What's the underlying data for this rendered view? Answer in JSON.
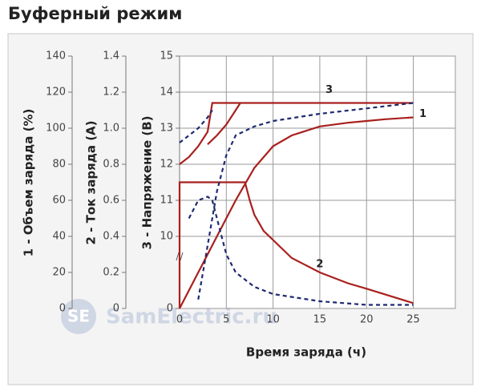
{
  "chart_data": {
    "type": "line",
    "title": "Буферный режим",
    "xlabel": "Время заряда (ч)",
    "ylabel": "1 - Объем заряда (%)",
    "y2label": "2 - Ток заряда (А)",
    "y3label": "3 - Напряжение (В)",
    "watermark_logo": "SE",
    "watermark": "SamElectric.ru",
    "xlim": [
      0,
      29.5
    ],
    "xticks": [
      0,
      5,
      10,
      15,
      20,
      25
    ],
    "ylim": [
      0,
      140
    ],
    "yticks": [
      0,
      20,
      40,
      60,
      80,
      100,
      120,
      140
    ],
    "y2lim": [
      0,
      1.4
    ],
    "y2ticks": [
      0,
      0.2,
      0.4,
      0.6,
      0.8,
      {
        "value": 1,
        "label": "1.0"
      },
      1.2,
      1.4
    ],
    "y3lim": [
      0,
      15
    ],
    "y3break": [
      0,
      10
    ],
    "y3ticks": [
      0,
      10,
      11,
      12,
      13,
      14,
      15
    ],
    "grid": true,
    "series": [
      {
        "name": "1",
        "color": "#a8201e",
        "axis": "y",
        "dashed": false,
        "x": [
          0,
          2,
          4,
          6,
          7,
          8,
          10,
          12,
          15,
          18,
          20,
          22,
          25
        ],
        "values": [
          0,
          20,
          40,
          60,
          69,
          78,
          90,
          96,
          101,
          103,
          104,
          105,
          106
        ]
      },
      {
        "name": "2",
        "color": "#a8201e",
        "axis": "y2",
        "dashed": false,
        "x": [
          0,
          0,
          7,
          7.5,
          8,
          9,
          10,
          12,
          15,
          18,
          20,
          25
        ],
        "values": [
          0,
          0.7,
          0.7,
          0.6,
          0.52,
          0.43,
          0.38,
          0.28,
          0.2,
          0.14,
          0.11,
          0.03
        ]
      },
      {
        "name": "3",
        "color": "#a8201e",
        "axis": "y3",
        "dashed": false,
        "x": [
          0,
          1,
          2,
          3,
          3.5,
          25
        ],
        "values": [
          12.0,
          12.2,
          12.5,
          12.9,
          13.7,
          13.7
        ]
      },
      {
        "color": "#a8201e",
        "axis": "y3",
        "dashed": false,
        "x": [
          3,
          4,
          5,
          6,
          6.5
        ],
        "values": [
          12.55,
          12.8,
          13.1,
          13.5,
          13.7
        ]
      },
      {
        "color": "#1f2a70",
        "axis": "y3",
        "dashed": true,
        "x": [
          0,
          1,
          2,
          3,
          3.5
        ],
        "values": [
          12.6,
          12.8,
          13.0,
          13.3,
          13.5
        ]
      },
      {
        "color": "#1f2a70",
        "axis": "y",
        "dashed": true,
        "x": [
          2,
          3,
          4,
          5,
          6,
          8,
          10,
          15,
          20,
          25
        ],
        "values": [
          5,
          35,
          65,
          85,
          96,
          101,
          104,
          108,
          111,
          114
        ]
      },
      {
        "color": "#1f2a70",
        "axis": "y2",
        "dashed": true,
        "x": [
          1,
          2,
          3,
          3.5,
          4,
          5,
          6,
          8,
          10,
          15,
          20,
          25
        ],
        "values": [
          0.5,
          0.6,
          0.62,
          0.6,
          0.5,
          0.3,
          0.2,
          0.12,
          0.08,
          0.04,
          0.02,
          0.02
        ]
      }
    ]
  }
}
